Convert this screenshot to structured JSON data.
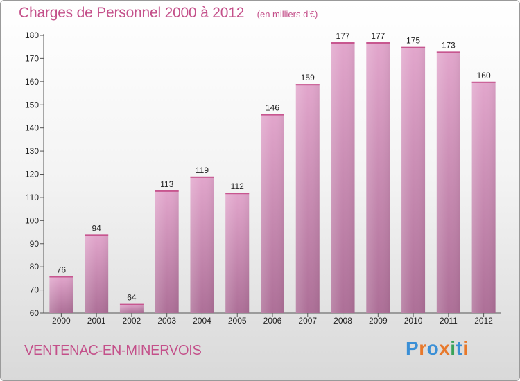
{
  "title": "Charges de Personnel 2000 à 2012",
  "unit": "(en milliers d'€)",
  "commune": "VENTENAC-EN-MINERVOIS",
  "brand": {
    "text": "Proxiti",
    "letter_colors": [
      "#3a8fd6",
      "#e8782a",
      "#3a8fd6",
      "#e8782a",
      "#3aa35a",
      "#3a8fd6",
      "#e8782a"
    ]
  },
  "colors": {
    "bar_top": "#e2a6cc",
    "bar_bottom": "#ad6f97",
    "accent": "#c4508a"
  },
  "chart_data": {
    "type": "bar",
    "title": "Charges de Personnel 2000 à 2012",
    "subtitle": "(en milliers d'€)",
    "categories": [
      "2000",
      "2001",
      "2002",
      "2003",
      "2004",
      "2005",
      "2006",
      "2007",
      "2008",
      "2009",
      "2010",
      "2011",
      "2012"
    ],
    "values": [
      76,
      94,
      64,
      113,
      119,
      112,
      146,
      159,
      177,
      177,
      175,
      173,
      160
    ],
    "ylim": [
      60,
      180
    ],
    "yticks": [
      60,
      70,
      80,
      90,
      100,
      110,
      120,
      130,
      140,
      150,
      160,
      170,
      180
    ],
    "grid": false,
    "legend": "none"
  }
}
